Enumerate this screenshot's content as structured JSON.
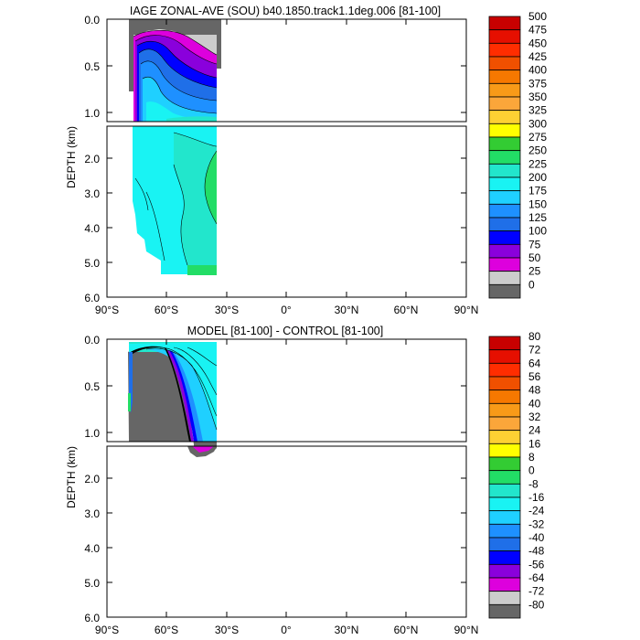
{
  "chart_data": [
    {
      "type": "contour",
      "title": "IAGE ZONAL-AVE (SOU) b40.1850.track1.1deg.006 [81-100]",
      "ylabel": "DEPTH (km)",
      "xlabel": "",
      "x_ticks": [
        "90°S",
        "60°S",
        "30°S",
        "0°",
        "30°N",
        "60°N",
        "90°N"
      ],
      "x_tick_values": [
        -90,
        -60,
        -30,
        0,
        30,
        60,
        90
      ],
      "xlim": [
        -90,
        90
      ],
      "ylim": [
        6.0,
        0.0
      ],
      "y_ticks_upper": [
        "0.0",
        "0.5",
        "1.0"
      ],
      "y_tick_values_upper": [
        0.0,
        0.5,
        1.0
      ],
      "y_ticks_lower": [
        "2.0",
        "3.0",
        "4.0",
        "5.0",
        "6.0"
      ],
      "y_tick_values_lower": [
        2.0,
        3.0,
        4.0,
        5.0,
        6.0
      ],
      "colorbar_labels": [
        "500",
        "475",
        "450",
        "425",
        "400",
        "375",
        "350",
        "325",
        "300",
        "275",
        "250",
        "225",
        "200",
        "175",
        "150",
        "125",
        "100",
        "75",
        "50",
        "25",
        "0"
      ],
      "colorbar_colors": [
        "#c80000",
        "#e60f00",
        "#ff2d00",
        "#f05000",
        "#f67800",
        "#f89a18",
        "#fba63a",
        "#fdd033",
        "#ffff00",
        "#33cc33",
        "#22dd66",
        "#22e6cc",
        "#19f3f3",
        "#1fd0ff",
        "#1e90ff",
        "#1f6fe8",
        "#0000ff",
        "#8a00dc",
        "#dd00dd",
        "#cccccc",
        "#666666"
      ],
      "regions": [
        {
          "name": "land-mask",
          "color": "#666666",
          "x_range": [
            -77,
            -33
          ],
          "depth_range": [
            0.0,
            0.35
          ]
        },
        {
          "name": "shallow-young-water",
          "value_range": [
            25,
            125
          ],
          "x_range": [
            -77,
            -33
          ],
          "depth_range": [
            0.0,
            0.7
          ]
        },
        {
          "name": "deep-water",
          "value_range": [
            175,
            275
          ],
          "x_range": [
            -77,
            -35
          ],
          "depth_range": [
            1.1,
            5.4
          ]
        }
      ]
    },
    {
      "type": "contour",
      "title": "MODEL [81-100] - CONTROL [81-100]",
      "ylabel": "DEPTH (km)",
      "xlabel": "",
      "x_ticks": [
        "90°S",
        "60°S",
        "30°S",
        "0°",
        "30°N",
        "60°N",
        "90°N"
      ],
      "x_tick_values": [
        -90,
        -60,
        -30,
        0,
        30,
        60,
        90
      ],
      "xlim": [
        -90,
        90
      ],
      "ylim": [
        6.0,
        0.0
      ],
      "y_ticks_upper": [
        "0.0",
        "0.5",
        "1.0"
      ],
      "y_tick_values_upper": [
        0.0,
        0.5,
        1.0
      ],
      "y_ticks_lower": [
        "2.0",
        "3.0",
        "4.0",
        "5.0",
        "6.0"
      ],
      "y_tick_values_lower": [
        2.0,
        3.0,
        4.0,
        5.0,
        6.0
      ],
      "colorbar_labels": [
        "80",
        "72",
        "64",
        "56",
        "48",
        "40",
        "32",
        "24",
        "16",
        "8",
        "0",
        "-8",
        "-16",
        "-24",
        "-32",
        "-40",
        "-48",
        "-56",
        "-64",
        "-72",
        "-80"
      ],
      "colorbar_colors": [
        "#c80000",
        "#e60f00",
        "#ff2d00",
        "#f05000",
        "#f67800",
        "#f89a18",
        "#fba63a",
        "#fdd033",
        "#ffff00",
        "#33cc33",
        "#22dd66",
        "#22e6cc",
        "#19f3f3",
        "#1fd0ff",
        "#1e90ff",
        "#1f6fe8",
        "#0000ff",
        "#8a00dc",
        "#dd00dd",
        "#cccccc",
        "#666666"
      ],
      "regions": [
        {
          "name": "surface-anomaly",
          "value_range": [
            -80,
            -8
          ],
          "x_range": [
            -77,
            -33
          ],
          "depth_range": [
            0.0,
            1.3
          ]
        }
      ]
    }
  ]
}
